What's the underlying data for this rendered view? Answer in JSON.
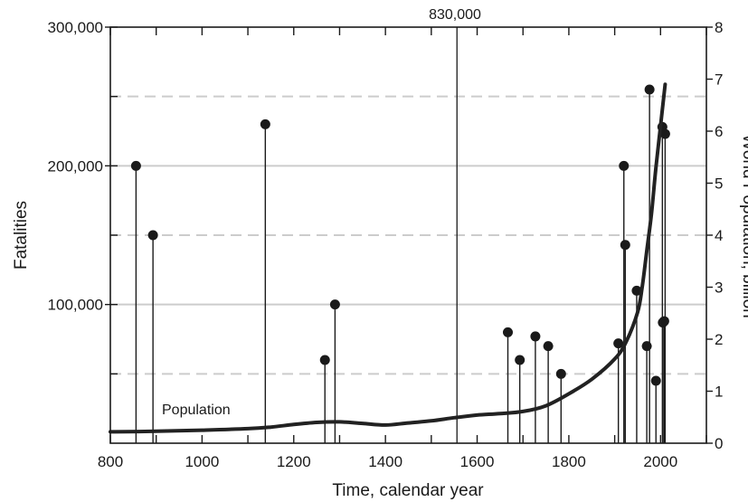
{
  "chart_data": {
    "type": "scatter",
    "subtype": "stem",
    "xlabel": "Time, calendar year",
    "ylabel": "Fatalities",
    "y2label": "World Population, billion",
    "xlim": [
      800,
      2100
    ],
    "ylim": [
      0,
      300000
    ],
    "y2lim": [
      0,
      8
    ],
    "x_ticks": [
      800,
      1000,
      1200,
      1400,
      1600,
      1800,
      2000
    ],
    "y_ticks": [
      {
        "value": 100000,
        "label": "100,000"
      },
      {
        "value": 200000,
        "label": "200,000"
      },
      {
        "value": 300000,
        "label": "300,000"
      }
    ],
    "y2_ticks": [
      0,
      1,
      2,
      3,
      4,
      5,
      6,
      7,
      8
    ],
    "grid": {
      "solid_y": [
        100000,
        200000
      ],
      "dashed_y": [
        50000,
        150000,
        250000
      ]
    },
    "series": [
      {
        "type": "stem",
        "points": [
          [
            856,
            200000
          ],
          [
            893,
            150000
          ],
          [
            1138,
            230000
          ],
          [
            1268,
            60000
          ],
          [
            1290,
            100000
          ],
          [
            1667,
            80000
          ],
          [
            1693,
            60000
          ],
          [
            1727,
            77000
          ],
          [
            1755,
            70000
          ],
          [
            1783,
            50000
          ],
          [
            1908,
            72000
          ],
          [
            1920,
            200000
          ],
          [
            1923,
            143000
          ],
          [
            1948,
            110000
          ],
          [
            1970,
            70000
          ],
          [
            1976,
            255000
          ],
          [
            1990,
            45000
          ],
          [
            2004,
            228000
          ],
          [
            2005,
            87000
          ],
          [
            2008,
            88000
          ],
          [
            2010,
            223000
          ]
        ]
      },
      {
        "name": "Population",
        "type": "line",
        "axis": "y2",
        "x": [
          800,
          900,
          1000,
          1100,
          1150,
          1200,
          1250,
          1300,
          1350,
          1400,
          1450,
          1500,
          1550,
          1600,
          1650,
          1700,
          1750,
          1800,
          1850,
          1900,
          1925,
          1950,
          1960,
          1970,
          1980,
          1990,
          2000,
          2010
        ],
        "y": [
          0.22,
          0.23,
          0.25,
          0.28,
          0.31,
          0.36,
          0.4,
          0.41,
          0.38,
          0.35,
          0.39,
          0.43,
          0.49,
          0.54,
          0.57,
          0.61,
          0.72,
          0.95,
          1.23,
          1.62,
          1.95,
          2.52,
          3.0,
          3.7,
          4.4,
          5.3,
          6.1,
          6.9
        ]
      }
    ],
    "annotations": [
      {
        "text": "830,000",
        "x": 1556,
        "type": "vline_offscale"
      },
      {
        "text": "Population",
        "x": 910,
        "y2": 0.85
      }
    ]
  }
}
